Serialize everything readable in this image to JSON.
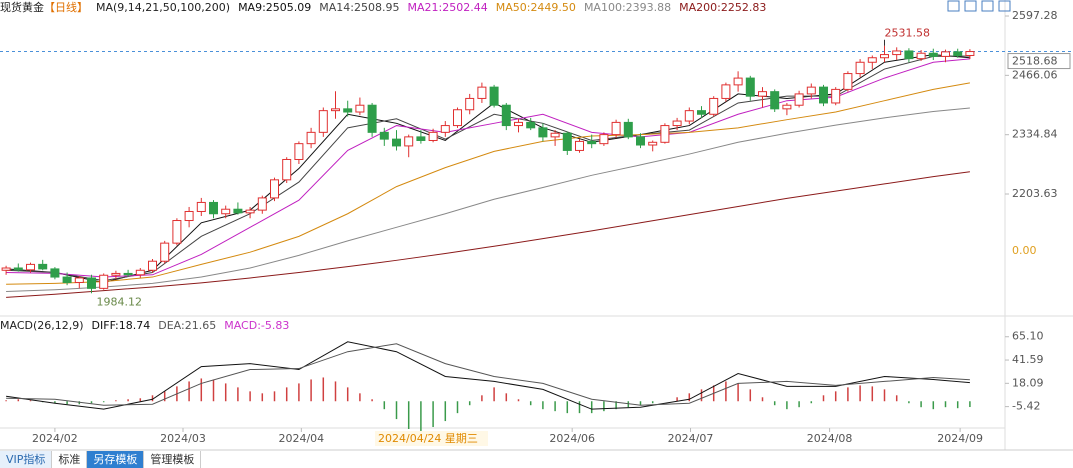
{
  "chart_data": {
    "type": "candlestick",
    "title": "现货黄金",
    "period": "【日线】",
    "indicator_label": "MA(9,14,21,50,100,200)",
    "up_color": "#e03030",
    "down_color": "#2e9e4a",
    "candles": [
      [
        2035,
        2045,
        2025,
        2040
      ],
      [
        2040,
        2050,
        2032,
        2036
      ],
      [
        2036,
        2052,
        2030,
        2048
      ],
      [
        2048,
        2058,
        2035,
        2038
      ],
      [
        2038,
        2042,
        2015,
        2020
      ],
      [
        2020,
        2030,
        2002,
        2008
      ],
      [
        2008,
        2022,
        1995,
        2018
      ],
      [
        2018,
        2025,
        1984.12,
        1995
      ],
      [
        1995,
        2028,
        1992,
        2024
      ],
      [
        2024,
        2034,
        2015,
        2028
      ],
      [
        2028,
        2036,
        2020,
        2025
      ],
      [
        2025,
        2040,
        2018,
        2035
      ],
      [
        2035,
        2060,
        2030,
        2055
      ],
      [
        2055,
        2100,
        2050,
        2095
      ],
      [
        2095,
        2150,
        2090,
        2145
      ],
      [
        2145,
        2175,
        2130,
        2165
      ],
      [
        2165,
        2195,
        2155,
        2185
      ],
      [
        2185,
        2190,
        2150,
        2160
      ],
      [
        2160,
        2178,
        2150,
        2170
      ],
      [
        2170,
        2185,
        2158,
        2162
      ],
      [
        2162,
        2175,
        2150,
        2168
      ],
      [
        2168,
        2200,
        2160,
        2195
      ],
      [
        2195,
        2240,
        2188,
        2235
      ],
      [
        2235,
        2285,
        2228,
        2280
      ],
      [
        2280,
        2320,
        2270,
        2315
      ],
      [
        2315,
        2350,
        2305,
        2340
      ],
      [
        2340,
        2395,
        2330,
        2388
      ],
      [
        2388,
        2431,
        2370,
        2392
      ],
      [
        2392,
        2410,
        2375,
        2385
      ],
      [
        2385,
        2417,
        2378,
        2400
      ],
      [
        2400,
        2405,
        2330,
        2340
      ],
      [
        2340,
        2350,
        2310,
        2325
      ],
      [
        2325,
        2345,
        2300,
        2310
      ],
      [
        2310,
        2335,
        2285,
        2330
      ],
      [
        2330,
        2345,
        2315,
        2322
      ],
      [
        2322,
        2348,
        2318,
        2340
      ],
      [
        2340,
        2365,
        2330,
        2355
      ],
      [
        2355,
        2395,
        2350,
        2390
      ],
      [
        2390,
        2425,
        2380,
        2415
      ],
      [
        2415,
        2450,
        2405,
        2440
      ],
      [
        2440,
        2445,
        2395,
        2400
      ],
      [
        2400,
        2405,
        2345,
        2355
      ],
      [
        2355,
        2370,
        2340,
        2362
      ],
      [
        2362,
        2372,
        2345,
        2350
      ],
      [
        2350,
        2360,
        2320,
        2330
      ],
      [
        2330,
        2345,
        2310,
        2338
      ],
      [
        2338,
        2342,
        2290,
        2300
      ],
      [
        2300,
        2325,
        2295,
        2320
      ],
      [
        2320,
        2335,
        2305,
        2315
      ],
      [
        2315,
        2340,
        2310,
        2335
      ],
      [
        2335,
        2368,
        2328,
        2362
      ],
      [
        2362,
        2370,
        2325,
        2330
      ],
      [
        2330,
        2338,
        2305,
        2312
      ],
      [
        2312,
        2322,
        2298,
        2318
      ],
      [
        2318,
        2360,
        2315,
        2355
      ],
      [
        2355,
        2372,
        2345,
        2365
      ],
      [
        2365,
        2395,
        2358,
        2388
      ],
      [
        2388,
        2398,
        2372,
        2380
      ],
      [
        2380,
        2420,
        2375,
        2415
      ],
      [
        2415,
        2450,
        2408,
        2445
      ],
      [
        2445,
        2475,
        2430,
        2460
      ],
      [
        2460,
        2465,
        2410,
        2420
      ],
      [
        2420,
        2440,
        2395,
        2430
      ],
      [
        2430,
        2435,
        2385,
        2392
      ],
      [
        2392,
        2405,
        2378,
        2400
      ],
      [
        2400,
        2432,
        2395,
        2425
      ],
      [
        2425,
        2448,
        2415,
        2440
      ],
      [
        2440,
        2445,
        2398,
        2405
      ],
      [
        2405,
        2440,
        2400,
        2435
      ],
      [
        2435,
        2475,
        2430,
        2470
      ],
      [
        2470,
        2502,
        2462,
        2495
      ],
      [
        2495,
        2510,
        2480,
        2505
      ],
      [
        2505,
        2531.58,
        2495,
        2512
      ],
      [
        2512,
        2528,
        2500,
        2520
      ],
      [
        2520,
        2526,
        2495,
        2503
      ],
      [
        2503,
        2522,
        2498,
        2515
      ],
      [
        2515,
        2525,
        2500,
        2508
      ],
      [
        2508,
        2523,
        2495,
        2518
      ],
      [
        2518,
        2525,
        2505,
        2510
      ],
      [
        2510,
        2524,
        2502,
        2518.68
      ]
    ],
    "xlim": [
      0,
      80
    ],
    "xticks": [
      {
        "value": 4.5,
        "label": "2024/02"
      },
      {
        "value": 15,
        "label": "2024/03"
      },
      {
        "value": 24.7,
        "label": "2024/04"
      },
      {
        "value": 46.9,
        "label": "2024/06"
      },
      {
        "value": 56.6,
        "label": "2024/07"
      },
      {
        "value": 68,
        "label": "2024/08"
      },
      {
        "value": 78.7,
        "label": "2024/09"
      }
    ],
    "ylim": [
      1942.7,
      2632.7
    ],
    "yticks": [
      2597.28,
      2466.06,
      2334.84,
      2203.63
    ],
    "extra_label": "0.00",
    "last_price": 2518.68,
    "high_value": 2531.58,
    "low_value": 1984.12,
    "crosshair_label": "2024/04/24 星期三",
    "ma_x": [
      0,
      4,
      8,
      12,
      16,
      20,
      24,
      28,
      32,
      36,
      40,
      44,
      48,
      52,
      56,
      60,
      64,
      68,
      72,
      76,
      79
    ],
    "series": [
      {
        "name": "MA9:2505.09",
        "color": "#111111",
        "values": [
          2038,
          2030,
          2008,
          2035,
          2140,
          2168,
          2260,
          2380,
          2360,
          2322,
          2405,
          2350,
          2318,
          2335,
          2355,
          2425,
          2415,
          2425,
          2495,
          2512,
          2505.09
        ]
      },
      {
        "name": "MA14:2508.95",
        "color": "#444444",
        "values": [
          2035,
          2030,
          2012,
          2030,
          2110,
          2160,
          2230,
          2350,
          2370,
          2325,
          2380,
          2360,
          2322,
          2335,
          2345,
          2405,
          2420,
          2420,
          2480,
          2508,
          2508.95
        ]
      },
      {
        "name": "MA21:2502.44",
        "color": "#c020c0",
        "values": [
          2030,
          2028,
          2020,
          2025,
          2070,
          2130,
          2190,
          2300,
          2355,
          2340,
          2360,
          2380,
          2340,
          2330,
          2340,
          2380,
          2410,
          2418,
          2460,
          2495,
          2502.44
        ]
      },
      {
        "name": "MA50:2449.50",
        "color": "#d48a10",
        "values": [
          2004,
          2006,
          2010,
          2020,
          2048,
          2075,
          2110,
          2160,
          2220,
          2262,
          2298,
          2320,
          2332,
          2335,
          2340,
          2350,
          2368,
          2385,
          2410,
          2435,
          2449.5
        ]
      },
      {
        "name": "MA100:2393.88",
        "color": "#888888",
        "values": [
          1988,
          1992,
          1998,
          2006,
          2020,
          2040,
          2068,
          2100,
          2130,
          2160,
          2192,
          2218,
          2245,
          2268,
          2292,
          2318,
          2338,
          2356,
          2372,
          2386,
          2393.88
        ]
      },
      {
        "name": "MA200:2252.83",
        "color": "#8b1a1a",
        "values": [
          1975,
          1982,
          1990,
          1998,
          2007,
          2018,
          2030,
          2043,
          2057,
          2072,
          2088,
          2105,
          2122,
          2140,
          2158,
          2176,
          2194,
          2210,
          2226,
          2242,
          2252.83
        ]
      }
    ],
    "macd": {
      "label": "MACD(26,12,9)",
      "ylim": [
        -27,
        82
      ],
      "yticks": [
        {
          "value": 65.1,
          "label": "65.10"
        },
        41.59,
        18.09,
        -5.42
      ],
      "series": [
        {
          "name": "DIFF:18.74",
          "color": "#111111",
          "values": [
            5,
            -2,
            -8,
            2,
            35,
            38,
            32,
            60,
            50,
            25,
            20,
            12,
            -8,
            -6,
            2,
            28,
            15,
            15,
            25,
            22,
            18.74
          ]
        },
        {
          "name": "DEA:21.65",
          "color": "#555555",
          "values": [
            3,
            2,
            -4,
            -3,
            18,
            32,
            33,
            50,
            58,
            38,
            25,
            18,
            2,
            -4,
            -2,
            18,
            20,
            16,
            20,
            24,
            21.65
          ]
        }
      ],
      "histogram": {
        "name": "MACD:-5.83",
        "color": "#cc33cc",
        "up_color": "#d04040",
        "down_color": "#3a9a4a",
        "values": [
          1,
          2,
          1,
          -1,
          -2,
          -3,
          -3,
          -2,
          -1,
          1,
          2,
          3,
          6,
          10,
          15,
          20,
          23,
          22,
          18,
          14,
          10,
          8,
          10,
          14,
          18,
          22,
          24,
          20,
          14,
          8,
          2,
          -8,
          -18,
          -28,
          -30,
          -26,
          -20,
          -12,
          -4,
          6,
          14,
          8,
          2,
          -4,
          -8,
          -10,
          -12,
          -12,
          -12,
          -10,
          -8,
          -6,
          -4,
          -2,
          0,
          4,
          8,
          12,
          16,
          20,
          18,
          12,
          4,
          -4,
          -8,
          -6,
          -2,
          6,
          10,
          14,
          16,
          15,
          12,
          6,
          -2,
          -6,
          -8,
          -6,
          -7,
          -5.83
        ]
      }
    }
  },
  "toolbar": {
    "tabs": [
      "VIP指标",
      "标准",
      "另存模板",
      "管理模板"
    ]
  }
}
